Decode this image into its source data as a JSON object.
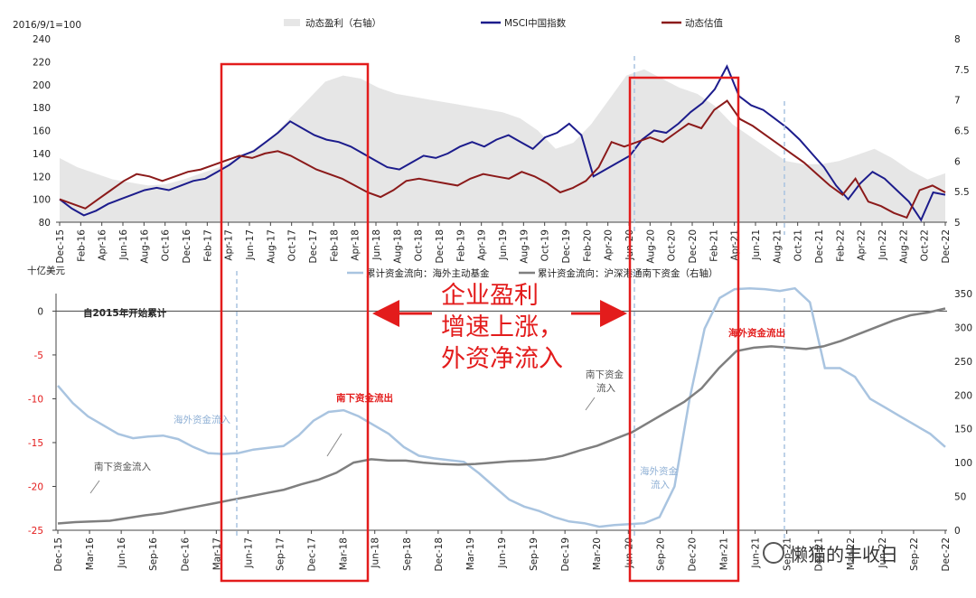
{
  "chart_data": [
    {
      "type": "line",
      "note_top_left": "2016/9/1=100",
      "legend_position": "top",
      "legend": [
        "动态盈利（右轴）",
        "MSCI中国指数",
        "动态估值"
      ],
      "ylim_left": [
        80,
        240
      ],
      "ylim_right": [
        5,
        8
      ],
      "yticks_left": [
        "80",
        "100",
        "120",
        "140",
        "160",
        "180",
        "200",
        "220",
        "240"
      ],
      "yticks_right": [
        "5",
        "5.5",
        "6",
        "6.5",
        "7",
        "7.5",
        "8"
      ],
      "xticks": [
        "Dec-15",
        "Feb-16",
        "Apr-16",
        "Jun-16",
        "Aug-16",
        "Oct-16",
        "Dec-16",
        "Feb-17",
        "Apr-17",
        "Jun-17",
        "Aug-17",
        "Oct-17",
        "Dec-17",
        "Feb-18",
        "Apr-18",
        "Jun-18",
        "Aug-18",
        "Oct-18",
        "Dec-18",
        "Feb-19",
        "Apr-19",
        "Jun-19",
        "Aug-19",
        "Oct-19",
        "Dec-19",
        "Feb-20",
        "Apr-20",
        "Jun-20",
        "Aug-20",
        "Oct-20",
        "Dec-20",
        "Feb-21",
        "Apr-21",
        "Jun-21",
        "Aug-21",
        "Oct-21",
        "Dec-21",
        "Feb-22",
        "Apr-22",
        "Jun-22",
        "Aug-22",
        "Oct-22",
        "Dec-22"
      ],
      "series": [
        {
          "name": "动态盈利（右轴）",
          "color": "#e6e6e6",
          "axis": "right",
          "kind": "area",
          "values": [
            6.05,
            5.9,
            5.8,
            5.7,
            5.65,
            5.6,
            5.62,
            5.7,
            5.8,
            5.9,
            6.05,
            6.2,
            6.4,
            6.7,
            7.0,
            7.3,
            7.4,
            7.35,
            7.2,
            7.1,
            7.05,
            7.0,
            6.95,
            6.9,
            6.85,
            6.8,
            6.7,
            6.5,
            6.2,
            6.3,
            6.6,
            7.0,
            7.4,
            7.5,
            7.35,
            7.2,
            7.1,
            6.9,
            6.6,
            6.4,
            6.2,
            6.0,
            5.95,
            5.95,
            6.0,
            6.1,
            6.2,
            6.05,
            5.85,
            5.7,
            5.8
          ]
        },
        {
          "name": "MSCI中国指数",
          "color": "#1c1c8c",
          "axis": "left",
          "kind": "line",
          "values": [
            100,
            92,
            86,
            90,
            96,
            100,
            104,
            108,
            110,
            108,
            112,
            116,
            118,
            124,
            130,
            138,
            142,
            150,
            158,
            168,
            162,
            156,
            152,
            150,
            146,
            140,
            134,
            128,
            126,
            132,
            138,
            136,
            140,
            146,
            150,
            146,
            152,
            156,
            150,
            144,
            154,
            158,
            166,
            156,
            120,
            126,
            132,
            138,
            152,
            160,
            158,
            166,
            176,
            184,
            196,
            216,
            190,
            182,
            178,
            170,
            162,
            152,
            140,
            128,
            112,
            100,
            114,
            124,
            118,
            108,
            98,
            82,
            106,
            104
          ]
        },
        {
          "name": "动态估值",
          "color": "#8b1a1a",
          "axis": "left",
          "kind": "line",
          "values": [
            100,
            96,
            92,
            100,
            108,
            116,
            122,
            120,
            116,
            120,
            124,
            126,
            130,
            134,
            138,
            136,
            140,
            142,
            138,
            132,
            126,
            122,
            118,
            112,
            106,
            102,
            108,
            116,
            118,
            116,
            114,
            112,
            118,
            122,
            120,
            118,
            124,
            120,
            114,
            106,
            110,
            116,
            128,
            150,
            146,
            150,
            154,
            150,
            158,
            166,
            162,
            178,
            186,
            170,
            164,
            156,
            148,
            140,
            132,
            122,
            112,
            104,
            118,
            98,
            94,
            88,
            84,
            108,
            112,
            106
          ]
        }
      ]
    },
    {
      "type": "line",
      "ylabel_left": "十亿美元",
      "note": "自2015年开始累计",
      "legend_position": "top",
      "legend": [
        "累计资金流向：海外主动基金",
        "累计资金流向：沪深港通南下资金（右轴）"
      ],
      "ylim_left": [
        -25,
        2
      ],
      "ylim_right": [
        0,
        350
      ],
      "yticks_left": [
        "0",
        "-5",
        "-10",
        "-15",
        "-20",
        "-25"
      ],
      "yticks_right": [
        "0",
        "50",
        "100",
        "150",
        "200",
        "250",
        "300",
        "350"
      ],
      "xticks": [
        "Dec-15",
        "Mar-16",
        "Jun-16",
        "Sep-16",
        "Dec-16",
        "Mar-17",
        "Jun-17",
        "Sep-17",
        "Dec-17",
        "Mar-18",
        "Jun-18",
        "Sep-18",
        "Dec-18",
        "Mar-19",
        "Jun-19",
        "Sep-19",
        "Dec-19",
        "Mar-20",
        "Jun-20",
        "Sep-20",
        "Dec-20",
        "Mar-21",
        "Jun-21",
        "Sep-21",
        "Dec-21",
        "Mar-22",
        "Jun-22",
        "Sep-22",
        "Dec-22"
      ],
      "series": [
        {
          "name": "累计资金流向：海外主动基金",
          "color": "#a9c4e0",
          "axis": "left",
          "values": [
            -8.5,
            -10.5,
            -12,
            -13,
            -14,
            -14.5,
            -14.3,
            -14.2,
            -14.6,
            -15.5,
            -16.2,
            -16.3,
            -16.2,
            -15.8,
            -15.6,
            -15.4,
            -14.2,
            -12.5,
            -11.5,
            -11.3,
            -12,
            -13,
            -14,
            -15.5,
            -16.5,
            -16.8,
            -17,
            -17.2,
            -18.5,
            -20,
            -21.5,
            -22.3,
            -22.8,
            -23.5,
            -24,
            -24.2,
            -24.6,
            -24.4,
            -24.3,
            -24.2,
            -23.5,
            -20,
            -10,
            -2,
            1.5,
            2.5,
            2.6,
            2.5,
            2.3,
            2.6,
            1,
            -6.5,
            -6.5,
            -7.5,
            -10,
            -11,
            -12,
            -13,
            -14,
            -15.5
          ]
        },
        {
          "name": "累计资金流向：沪深港通南下资金（右轴）",
          "color": "#7f7f7f",
          "axis": "right",
          "values": [
            10,
            12,
            13,
            14,
            18,
            22,
            25,
            30,
            35,
            40,
            45,
            50,
            55,
            60,
            68,
            75,
            85,
            100,
            105,
            103,
            103,
            100,
            98,
            97,
            98,
            100,
            102,
            103,
            105,
            110,
            118,
            125,
            135,
            145,
            160,
            175,
            190,
            210,
            240,
            265,
            270,
            272,
            270,
            268,
            272,
            280,
            290,
            300,
            310,
            318,
            322,
            328
          ]
        }
      ]
    }
  ],
  "annotations": {
    "mid_text_lines": [
      "企业盈利",
      "增速上涨，",
      "外资净流入"
    ],
    "south_outflow_1": "南下资金流出",
    "south_outflow_2": "海外资金流出",
    "overseas_inflow_1": "海外资金流入",
    "overseas_inflow_2_lines": [
      "海外资金",
      "流入"
    ],
    "south_inflow_1": "南下资金流入",
    "south_inflow_2_lines": [
      "南下资金",
      "流入"
    ]
  },
  "watermark": "懒猫的丰收日"
}
